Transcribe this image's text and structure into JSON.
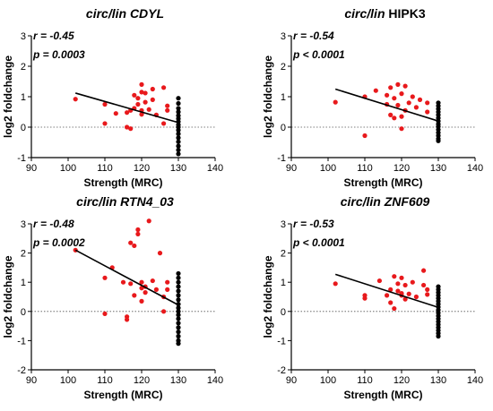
{
  "chart_data": [
    {
      "type": "scatter",
      "title": "circ/lin CDYL",
      "title_parts": [
        {
          "text": "circ/lin CDYL",
          "italic": true
        }
      ],
      "annotations": {
        "r": "r = -0.45",
        "p": "p = 0.0003"
      },
      "xlabel": "Strength (MRC)",
      "ylabel": "log2 foldchange",
      "xlim": [
        90,
        140
      ],
      "ylim": [
        -1,
        3
      ],
      "xticks": [
        90,
        100,
        110,
        120,
        130,
        140
      ],
      "yticks": [
        -1,
        0,
        1,
        2,
        3
      ],
      "reference_line": {
        "y": 0,
        "style": "dotted"
      },
      "regression": {
        "x": [
          102,
          130
        ],
        "y": [
          1.12,
          0.15
        ]
      },
      "series": [
        {
          "color": "#e8191c",
          "points": [
            [
              102,
              0.92
            ],
            [
              110,
              0.75
            ],
            [
              110,
              0.12
            ],
            [
              113,
              0.45
            ],
            [
              116,
              0.48
            ],
            [
              116,
              0.0
            ],
            [
              117,
              -0.05
            ],
            [
              117,
              0.55
            ],
            [
              118,
              1.05
            ],
            [
              118,
              0.62
            ],
            [
              119,
              0.75
            ],
            [
              119,
              0.95
            ],
            [
              120,
              1.15
            ],
            [
              120,
              1.4
            ],
            [
              120,
              0.55
            ],
            [
              120,
              0.42
            ],
            [
              121,
              0.82
            ],
            [
              121,
              1.12
            ],
            [
              122,
              0.58
            ],
            [
              123,
              1.25
            ],
            [
              123,
              0.9
            ],
            [
              124,
              0.4
            ],
            [
              126,
              1.3
            ],
            [
              126,
              0.12
            ],
            [
              127,
              0.55
            ],
            [
              127,
              0.7
            ]
          ]
        },
        {
          "color": "#000000",
          "points": [
            [
              130,
              0.95
            ],
            [
              130,
              0.78
            ],
            [
              130,
              0.62
            ],
            [
              130,
              0.5
            ],
            [
              130,
              0.38
            ],
            [
              130,
              0.28
            ],
            [
              130,
              0.18
            ],
            [
              130,
              0.08
            ],
            [
              130,
              0.0
            ],
            [
              130,
              -0.1
            ],
            [
              130,
              -0.22
            ],
            [
              130,
              -0.35
            ],
            [
              130,
              -0.48
            ],
            [
              130,
              -0.62
            ],
            [
              130,
              -0.75
            ],
            [
              130,
              -0.88
            ]
          ]
        }
      ]
    },
    {
      "type": "scatter",
      "title": "circ/lin HIPK3",
      "title_parts": [
        {
          "text": "circ/lin ",
          "italic": true
        },
        {
          "text": "HIPK3",
          "italic": false
        }
      ],
      "annotations": {
        "r": "r = -0.54",
        "p": "p < 0.0001"
      },
      "xlabel": "Strength (MRC)",
      "ylabel": "log2 foldchange",
      "xlim": [
        90,
        140
      ],
      "ylim": [
        -1,
        3
      ],
      "xticks": [
        90,
        100,
        110,
        120,
        130,
        140
      ],
      "yticks": [
        -1,
        0,
        1,
        2,
        3
      ],
      "reference_line": {
        "y": 0,
        "style": "dotted"
      },
      "regression": {
        "x": [
          102,
          130
        ],
        "y": [
          1.25,
          0.2
        ]
      },
      "series": [
        {
          "color": "#e8191c",
          "points": [
            [
              102,
              0.82
            ],
            [
              110,
              1.0
            ],
            [
              110,
              -0.28
            ],
            [
              113,
              1.2
            ],
            [
              116,
              0.75
            ],
            [
              116,
              1.05
            ],
            [
              117,
              0.4
            ],
            [
              117,
              1.3
            ],
            [
              118,
              0.3
            ],
            [
              118,
              0.95
            ],
            [
              119,
              1.4
            ],
            [
              119,
              0.72
            ],
            [
              120,
              1.1
            ],
            [
              120,
              0.35
            ],
            [
              120,
              -0.05
            ],
            [
              121,
              1.35
            ],
            [
              121,
              0.55
            ],
            [
              122,
              0.8
            ],
            [
              123,
              1.0
            ],
            [
              124,
              0.65
            ],
            [
              125,
              0.9
            ],
            [
              127,
              0.5
            ],
            [
              127,
              0.8
            ]
          ]
        },
        {
          "color": "#000000",
          "points": [
            [
              130,
              0.8
            ],
            [
              130,
              0.7
            ],
            [
              130,
              0.6
            ],
            [
              130,
              0.5
            ],
            [
              130,
              0.4
            ],
            [
              130,
              0.3
            ],
            [
              130,
              0.2
            ],
            [
              130,
              0.1
            ],
            [
              130,
              0.02
            ],
            [
              130,
              -0.08
            ],
            [
              130,
              -0.18
            ],
            [
              130,
              -0.28
            ],
            [
              130,
              -0.38
            ],
            [
              130,
              -0.45
            ]
          ]
        }
      ]
    },
    {
      "type": "scatter",
      "title": "circ/lin RTN4_03",
      "title_parts": [
        {
          "text": "circ/lin RTN4_03",
          "italic": true
        }
      ],
      "annotations": {
        "r": "r = -0.48",
        "p": "p = 0.0002"
      },
      "xlabel": "Strength (MRC)",
      "ylabel": "log2 foldchange",
      "xlim": [
        90,
        140
      ],
      "ylim": [
        -2,
        3
      ],
      "xticks": [
        90,
        100,
        110,
        120,
        130,
        140
      ],
      "yticks": [
        -2,
        -1,
        0,
        1,
        2,
        3
      ],
      "reference_line": {
        "y": 0,
        "style": "dotted"
      },
      "regression": {
        "x": [
          102,
          130
        ],
        "y": [
          2.1,
          0.22
        ]
      },
      "series": [
        {
          "color": "#e8191c",
          "points": [
            [
              102,
              2.1
            ],
            [
              110,
              1.15
            ],
            [
              110,
              -0.08
            ],
            [
              112,
              1.5
            ],
            [
              115,
              1.0
            ],
            [
              116,
              -0.18
            ],
            [
              116,
              -0.28
            ],
            [
              117,
              2.35
            ],
            [
              117,
              0.95
            ],
            [
              118,
              2.25
            ],
            [
              118,
              0.55
            ],
            [
              119,
              2.8
            ],
            [
              119,
              2.65
            ],
            [
              120,
              1.0
            ],
            [
              120,
              0.8
            ],
            [
              120,
              0.35
            ],
            [
              121,
              0.65
            ],
            [
              121,
              0.85
            ],
            [
              122,
              3.1
            ],
            [
              123,
              1.05
            ],
            [
              124,
              0.75
            ],
            [
              125,
              2.0
            ],
            [
              126,
              0.5
            ],
            [
              126,
              0.0
            ],
            [
              127,
              1.0
            ],
            [
              127,
              0.75
            ]
          ]
        },
        {
          "color": "#000000",
          "points": [
            [
              130,
              1.3
            ],
            [
              130,
              1.15
            ],
            [
              130,
              1.0
            ],
            [
              130,
              0.85
            ],
            [
              130,
              0.7
            ],
            [
              130,
              0.55
            ],
            [
              130,
              0.4
            ],
            [
              130,
              0.25
            ],
            [
              130,
              0.12
            ],
            [
              130,
              0.0
            ],
            [
              130,
              -0.12
            ],
            [
              130,
              -0.25
            ],
            [
              130,
              -0.4
            ],
            [
              130,
              -0.55
            ],
            [
              130,
              -0.7
            ],
            [
              130,
              -0.85
            ],
            [
              130,
              -1.0
            ],
            [
              130,
              -1.1
            ]
          ]
        }
      ]
    },
    {
      "type": "scatter",
      "title": "circ/lin ZNF609",
      "title_parts": [
        {
          "text": "circ/lin ZNF609",
          "italic": true
        }
      ],
      "annotations": {
        "r": "r = -0.53",
        "p": "p < 0.0001"
      },
      "xlabel": "Strength (MRC)",
      "ylabel": "log2 foldchange",
      "xlim": [
        90,
        140
      ],
      "ylim": [
        -2,
        3
      ],
      "xticks": [
        90,
        100,
        110,
        120,
        130,
        140
      ],
      "yticks": [
        -2,
        -1,
        0,
        1,
        2,
        3
      ],
      "reference_line": {
        "y": 0,
        "style": "dotted"
      },
      "regression": {
        "x": [
          102,
          130
        ],
        "y": [
          1.27,
          0.14
        ]
      },
      "series": [
        {
          "color": "#e8191c",
          "points": [
            [
              102,
              0.95
            ],
            [
              110,
              0.55
            ],
            [
              110,
              0.45
            ],
            [
              114,
              1.05
            ],
            [
              116,
              0.55
            ],
            [
              117,
              0.75
            ],
            [
              117,
              0.3
            ],
            [
              118,
              1.2
            ],
            [
              118,
              0.1
            ],
            [
              119,
              0.7
            ],
            [
              119,
              0.95
            ],
            [
              120,
              1.15
            ],
            [
              120,
              0.55
            ],
            [
              120,
              0.62
            ],
            [
              121,
              0.9
            ],
            [
              121,
              0.42
            ],
            [
              122,
              0.6
            ],
            [
              123,
              1.0
            ],
            [
              124,
              0.5
            ],
            [
              126,
              1.4
            ],
            [
              126,
              0.9
            ],
            [
              127,
              0.58
            ],
            [
              127,
              0.75
            ]
          ]
        },
        {
          "color": "#000000",
          "points": [
            [
              130,
              0.85
            ],
            [
              130,
              0.75
            ],
            [
              130,
              0.65
            ],
            [
              130,
              0.55
            ],
            [
              130,
              0.45
            ],
            [
              130,
              0.35
            ],
            [
              130,
              0.25
            ],
            [
              130,
              0.15
            ],
            [
              130,
              0.05
            ],
            [
              130,
              -0.05
            ],
            [
              130,
              -0.15
            ],
            [
              130,
              -0.25
            ],
            [
              130,
              -0.35
            ],
            [
              130,
              -0.45
            ],
            [
              130,
              -0.55
            ],
            [
              130,
              -0.65
            ],
            [
              130,
              -0.75
            ],
            [
              130,
              -0.85
            ]
          ]
        }
      ]
    }
  ]
}
